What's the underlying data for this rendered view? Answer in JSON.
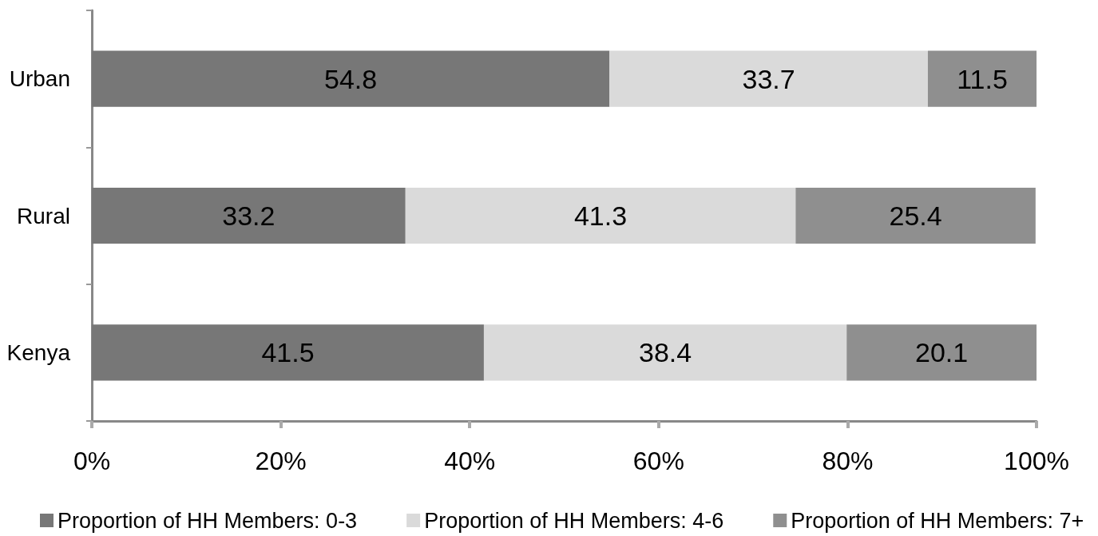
{
  "chart_data": {
    "type": "bar",
    "orientation": "horizontal",
    "stacked": true,
    "categories": [
      "Urban",
      "Rural",
      "Kenya"
    ],
    "series": [
      {
        "name": "Proportion of HH Members: 0-3",
        "color": "#777777",
        "values": [
          54.8,
          33.2,
          41.5
        ]
      },
      {
        "name": "Proportion of HH Members: 4-6",
        "color": "#dadada",
        "values": [
          33.7,
          41.3,
          38.4
        ]
      },
      {
        "name": "Proportion of HH Members: 7+",
        "color": "#8f8f8f",
        "values": [
          11.5,
          25.4,
          20.1
        ]
      }
    ],
    "xlim": [
      0,
      100
    ],
    "xticks": [
      {
        "value": 0,
        "label": "0%"
      },
      {
        "value": 20,
        "label": "20%"
      },
      {
        "value": 40,
        "label": "40%"
      },
      {
        "value": 60,
        "label": "60%"
      },
      {
        "value": 80,
        "label": "80%"
      },
      {
        "value": 100,
        "label": "100%"
      }
    ],
    "data_labels": true,
    "grid": false,
    "legend": "bottom"
  }
}
